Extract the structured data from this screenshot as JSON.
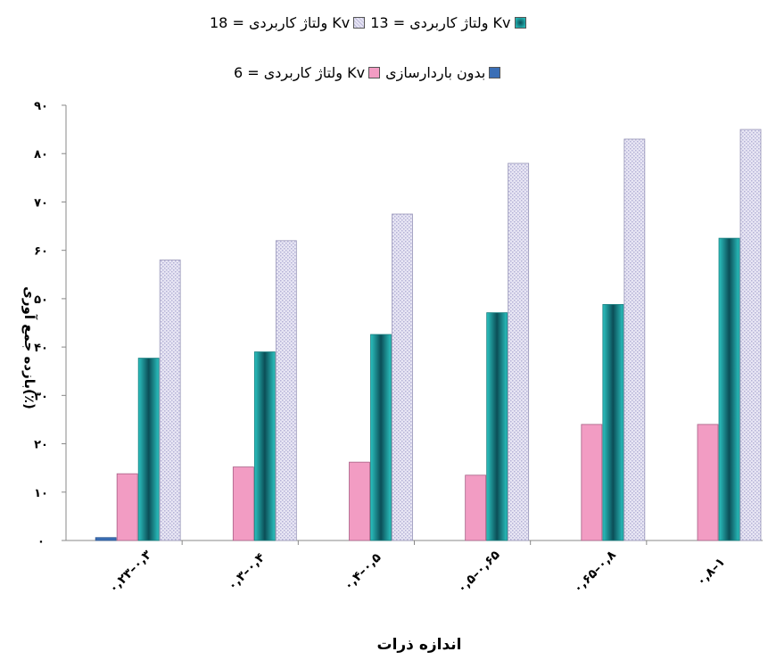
{
  "chart_data": {
    "type": "bar",
    "categories": [
      "۰,۲۳–۰,۳",
      "۰,۳–۰,۴",
      "۰,۴–۰,۵",
      "۰,۵–۰,۶۵",
      "۰,۶۵–۰,۸",
      "۰,۸–۱"
    ],
    "series": [
      {
        "name": "بدون باردارسازی",
        "values": [
          0.6,
          0,
          0,
          0,
          0,
          0
        ],
        "color": "#3b6fb6"
      },
      {
        "name": "ولتاژ کاربردی = 6 Kv",
        "values": [
          13.8,
          15.2,
          16.2,
          13.5,
          24.0,
          24.0
        ],
        "color": "#f29cc3"
      },
      {
        "name": "ولتاژ کاربردی = 13 Kv",
        "values": [
          37.7,
          39.0,
          42.6,
          47.1,
          48.8,
          62.5
        ],
        "color": "#23b3b2"
      },
      {
        "name": "ولتاژ کاربردی = 18 Kv",
        "values": [
          58.0,
          62.0,
          67.5,
          78.0,
          83.0,
          85.0
        ],
        "color": "#d9d7ee"
      }
    ],
    "yticks": [
      "۰",
      "۱۰",
      "۲۰",
      "۳۰",
      "۴۰",
      "۵۰",
      "۶۰",
      "۷۰",
      "۸۰",
      "۹۰"
    ],
    "ylim": [
      0,
      90
    ],
    "ylabel": "بازده جمع آوری(٪)",
    "xlabel": "اندازه ذرات",
    "legend": {
      "row1": [
        "ولتاژ کاربردی = 18 Kv",
        "ولتاژ کاربردی = 13 Kv"
      ],
      "row2": [
        "ولتاژ کاربردی = 6 Kv",
        "بدون باردارسازی"
      ],
      "position": "top"
    },
    "grid": false
  }
}
